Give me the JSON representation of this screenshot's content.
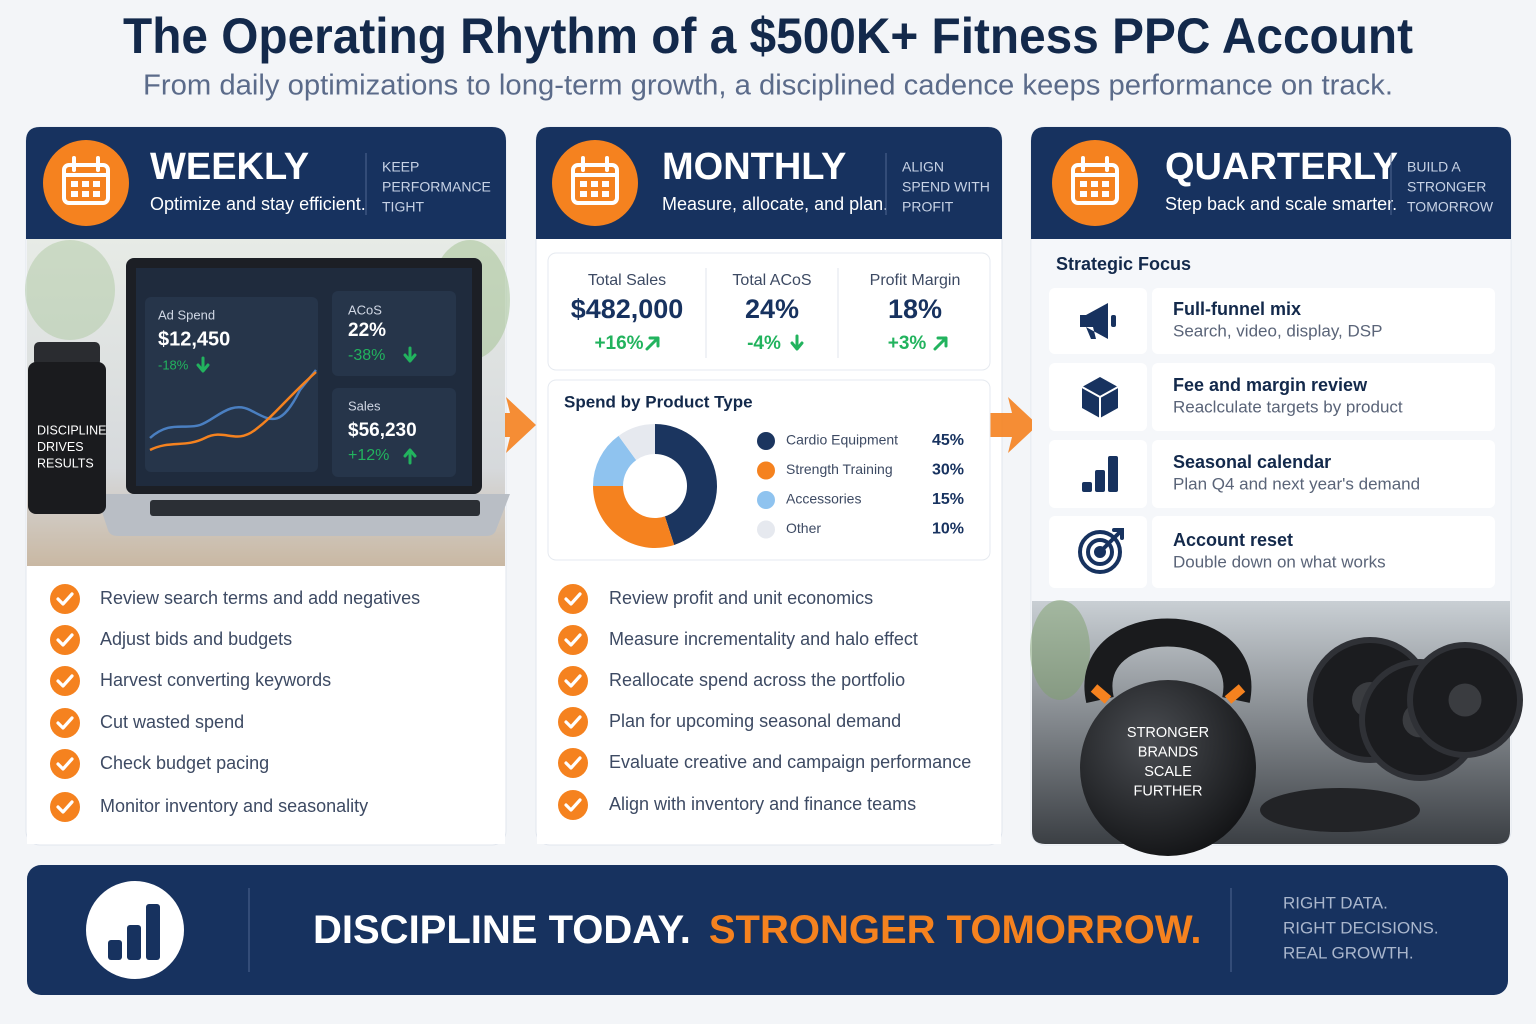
{
  "header": {
    "title": "The Operating Rhythm of a $500K+ Fitness PPC Account",
    "subtitle": "From daily optimizations to long-term growth, a disciplined cadence keeps performance on track."
  },
  "weekly": {
    "name": "WEEKLY",
    "tagline": "Optimize and stay efficient.",
    "motto": [
      "KEEP",
      "PERFORMANCE",
      "TIGHT"
    ],
    "screen": {
      "ad_spend_label": "Ad Spend",
      "ad_spend": "$12,450",
      "ad_spend_change": "-18%",
      "acos_label": "ACoS",
      "acos": "22%",
      "acos_change": "-38%",
      "sales_label": "Sales",
      "sales": "$56,230",
      "sales_change": "+12%"
    },
    "bottle": [
      "DISCIPLINE",
      "DRIVES",
      "RESULTS"
    ],
    "checklist": [
      "Review search terms and add negatives",
      "Adjust bids and budgets",
      "Harvest converting keywords",
      "Cut wasted spend",
      "Check budget pacing",
      "Monitor inventory and seasonality"
    ]
  },
  "monthly": {
    "name": "MONTHLY",
    "tagline": "Measure, allocate, and plan.",
    "motto": [
      "ALIGN",
      "SPEND WITH",
      "PROFIT"
    ],
    "kpis": [
      {
        "label": "Total Sales",
        "value": "$482,000",
        "change": "+16%"
      },
      {
        "label": "Total ACoS",
        "value": "24%",
        "change": "-4%"
      },
      {
        "label": "Profit Margin",
        "value": "18%",
        "change": "+3%"
      }
    ],
    "chart_data": {
      "type": "donut",
      "title": "Spend by Product Type",
      "categories": [
        "Cardio Equipment",
        "Strength Training",
        "Accessories",
        "Other"
      ],
      "values": [
        45,
        30,
        15,
        10
      ],
      "value_labels": [
        "45%",
        "30%",
        "15%",
        "10%"
      ],
      "colors": [
        "#1b355f",
        "#f5821f",
        "#8fc3ef",
        "#e6e9ef"
      ]
    },
    "checklist": [
      "Review profit and unit economics",
      "Measure incrementality and halo effect",
      "Reallocate spend across the portfolio",
      "Plan for upcoming seasonal demand",
      "Evaluate creative and campaign performance",
      "Align with inventory and finance teams"
    ]
  },
  "quarterly": {
    "name": "QUARTERLY",
    "tagline": "Step back and scale smarter.",
    "motto": [
      "BUILD A",
      "STRONGER",
      "TOMORROW"
    ],
    "focus_title": "Strategic Focus",
    "focus": [
      {
        "title": "Full-funnel mix",
        "desc": "Search, video, display, DSP"
      },
      {
        "title": "Fee and margin review",
        "desc": "Reaclculate targets by product"
      },
      {
        "title": "Seasonal calendar",
        "desc": "Plan Q4 and next year's demand"
      },
      {
        "title": "Account reset",
        "desc": "Double down on what works"
      }
    ],
    "kettlebell": [
      "STRONGER",
      "BRANDS",
      "SCALE",
      "FURTHER"
    ]
  },
  "footer": {
    "slogan_a": "DISCIPLINE TODAY.",
    "slogan_b": "STRONGER TOMORROW.",
    "right": [
      "RIGHT DATA.",
      "RIGHT DECISIONS.",
      "REAL GROWTH."
    ]
  }
}
